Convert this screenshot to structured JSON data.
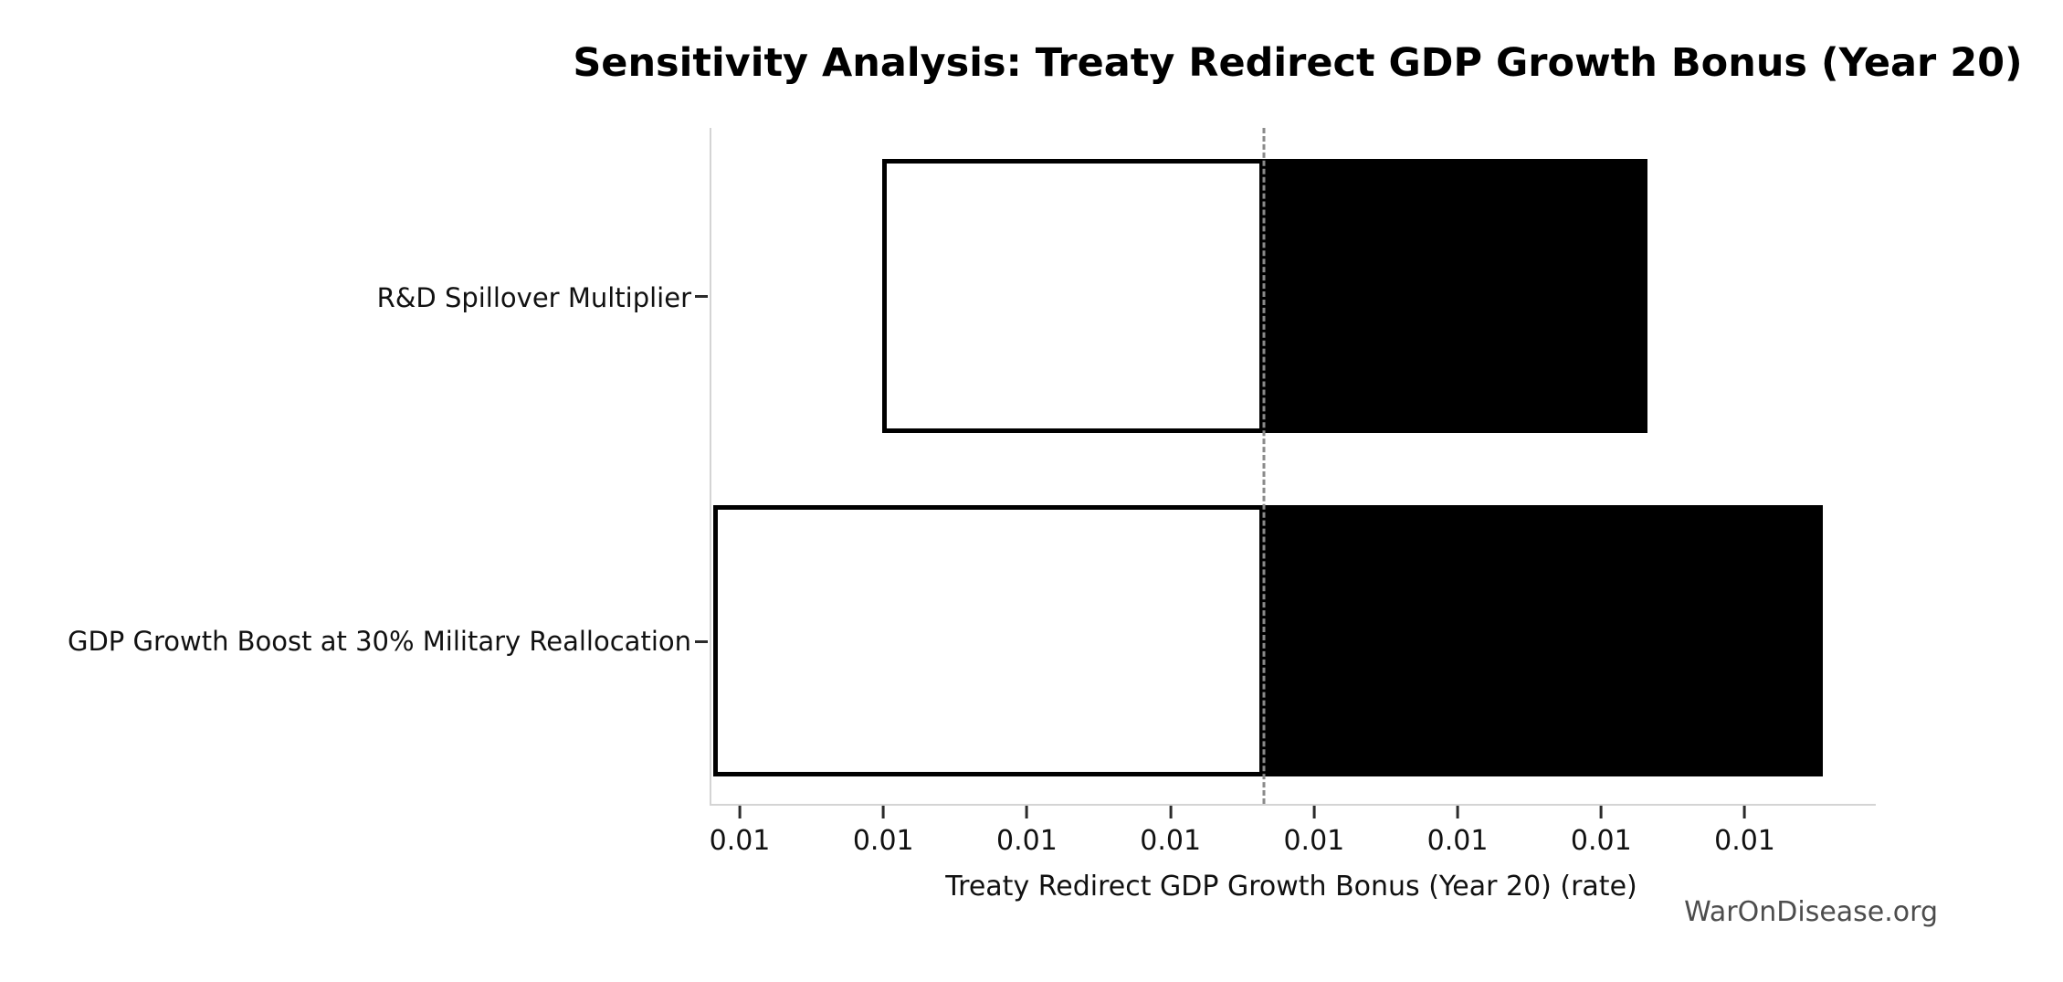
{
  "title": "Sensitivity Analysis: Treaty Redirect GDP Growth Bonus (Year 20)",
  "watermark": "WarOnDisease.org",
  "chart_data": {
    "type": "bar",
    "subtype": "tornado-sensitivity",
    "orientation": "horizontal",
    "title": "Sensitivity Analysis: Treaty Redirect GDP Growth Bonus (Year 20)",
    "xlabel": "Treaty Redirect GDP Growth Bonus (Year 20) (rate)",
    "ylabel": "",
    "categories": [
      "R&D Spillover Multiplier",
      "GDP Growth Boost at 30% Military Reallocation"
    ],
    "baseline": 0.00964,
    "series": [
      {
        "name": "R&D Spillover Multiplier",
        "low": 0.00698,
        "high": 0.01231
      },
      {
        "name": "GDP Growth Boost at 30% Military Reallocation",
        "low": 0.0058,
        "high": 0.01353
      }
    ],
    "xlim": [
      0.00579,
      0.0139
    ],
    "x_ticks": [
      0.006,
      0.007,
      0.008,
      0.009,
      0.01,
      0.011,
      0.012,
      0.013
    ],
    "x_tick_labels": [
      "0.01",
      "0.01",
      "0.01",
      "0.01",
      "0.01",
      "0.01",
      "0.01",
      "0.01"
    ],
    "grid": false,
    "legend": false,
    "colors": {
      "bar_low_fill": "#ffffff",
      "bar_high_fill": "#000000",
      "bar_edge": "#000000",
      "baseline_line": "#8a8a8a",
      "spine": "#d4d4d4",
      "text": "#111111",
      "watermark": "#4d4d4d"
    }
  }
}
